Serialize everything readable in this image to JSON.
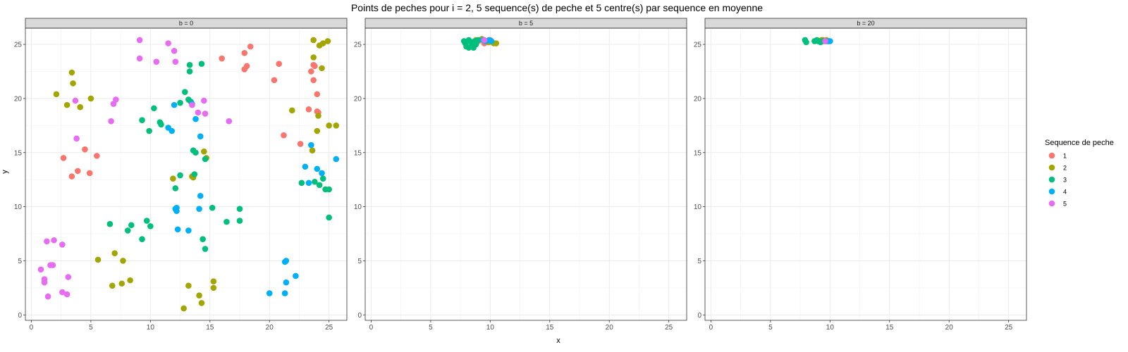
{
  "chart_data": {
    "type": "scatter",
    "title": "Points de peches pour i = 2, 5 sequence(s) de peche et 5 centre(s) par sequence en moyenne",
    "xlabel": "x",
    "ylabel": "y",
    "xlim": [
      -0.5,
      26.5
    ],
    "ylim": [
      -0.5,
      26.5
    ],
    "xticks": [
      0,
      5,
      10,
      15,
      20,
      25
    ],
    "yticks": [
      0,
      5,
      10,
      15,
      20,
      25
    ],
    "xtick_labels": [
      "0",
      "5",
      "10",
      "15",
      "20",
      "25"
    ],
    "ytick_labels": [
      "0",
      "5",
      "10",
      "15",
      "20",
      "25"
    ],
    "grid": true,
    "legend": {
      "title": "Sequence de peche",
      "position": "right",
      "entries": [
        {
          "label": "1",
          "color": "#F8766D"
        },
        {
          "label": "2",
          "color": "#A3A500"
        },
        {
          "label": "3",
          "color": "#00BF7D"
        },
        {
          "label": "4",
          "color": "#00B0F6"
        },
        {
          "label": "5",
          "color": "#E76BF3"
        }
      ]
    },
    "facets": [
      {
        "label": "b = 0",
        "series": [
          {
            "name": "1",
            "points": [
              [
                2.7,
                14.5
              ],
              [
                3.4,
                12.8
              ],
              [
                3.9,
                13.3
              ],
              [
                4.5,
                15.3
              ],
              [
                4.9,
                13.1
              ],
              [
                5.5,
                14.7
              ],
              [
                16.0,
                23.7
              ],
              [
                17.9,
                24.2
              ],
              [
                17.9,
                22.7
              ],
              [
                18.1,
                23.0
              ],
              [
                18.4,
                24.8
              ],
              [
                20.4,
                21.7
              ],
              [
                20.8,
                23.2
              ],
              [
                21.2,
                16.6
              ],
              [
                22.6,
                15.8
              ],
              [
                23.3,
                19.0
              ],
              [
                23.5,
                22.5
              ],
              [
                23.7,
                21.7
              ],
              [
                23.7,
                23.1
              ],
              [
                23.8,
                23.0
              ],
              [
                24.0,
                20.4
              ],
              [
                24.0,
                18.8
              ],
              [
                24.1,
                18.7
              ]
            ]
          },
          {
            "name": "2",
            "points": [
              [
                2.1,
                20.4
              ],
              [
                3.0,
                19.4
              ],
              [
                3.4,
                22.4
              ],
              [
                3.5,
                21.4
              ],
              [
                4.1,
                19.2
              ],
              [
                5.0,
                20.0
              ],
              [
                5.6,
                5.1
              ],
              [
                6.8,
                2.7
              ],
              [
                7.0,
                5.7
              ],
              [
                7.6,
                2.9
              ],
              [
                7.7,
                5.0
              ],
              [
                8.3,
                3.2
              ],
              [
                11.9,
                12.6
              ],
              [
                12.8,
                0.6
              ],
              [
                13.2,
                2.7
              ],
              [
                13.5,
                12.8
              ],
              [
                13.6,
                12.7
              ],
              [
                14.1,
                1.8
              ],
              [
                14.3,
                1.1
              ],
              [
                14.5,
                15.1
              ],
              [
                14.7,
                14.5
              ],
              [
                15.3,
                2.5
              ],
              [
                15.3,
                3.1
              ],
              [
                21.9,
                18.9
              ],
              [
                23.6,
                15.2
              ],
              [
                23.7,
                23.8
              ],
              [
                23.7,
                25.4
              ],
              [
                24.0,
                17.0
              ],
              [
                24.1,
                18.4
              ],
              [
                24.2,
                24.9
              ],
              [
                24.4,
                22.8
              ],
              [
                24.5,
                25.1
              ],
              [
                24.9,
                25.3
              ],
              [
                25.0,
                17.5
              ],
              [
                25.6,
                17.5
              ]
            ]
          },
          {
            "name": "3",
            "points": [
              [
                6.6,
                8.4
              ],
              [
                8.1,
                7.8
              ],
              [
                8.4,
                8.3
              ],
              [
                9.3,
                7.0
              ],
              [
                9.3,
                18.0
              ],
              [
                9.7,
                8.7
              ],
              [
                9.9,
                17.0
              ],
              [
                10.0,
                8.2
              ],
              [
                10.3,
                19.1
              ],
              [
                10.8,
                17.8
              ],
              [
                10.9,
                17.6
              ],
              [
                12.1,
                11.7
              ],
              [
                12.5,
                12.9
              ],
              [
                12.5,
                19.6
              ],
              [
                12.9,
                20.6
              ],
              [
                13.2,
                19.9
              ],
              [
                13.3,
                23.1
              ],
              [
                13.3,
                22.5
              ],
              [
                13.4,
                19.7
              ],
              [
                13.6,
                15.2
              ],
              [
                13.7,
                13.0
              ],
              [
                13.8,
                15.0
              ],
              [
                14.3,
                23.2
              ],
              [
                14.4,
                7.0
              ],
              [
                14.6,
                14.4
              ],
              [
                14.6,
                6.1
              ],
              [
                15.2,
                9.9
              ],
              [
                16.4,
                8.6
              ],
              [
                17.5,
                9.8
              ],
              [
                17.5,
                8.7
              ],
              [
                22.7,
                12.2
              ],
              [
                23.8,
                12.3
              ],
              [
                24.2,
                12.0
              ],
              [
                24.5,
                12.6
              ],
              [
                24.7,
                11.6
              ],
              [
                25.0,
                11.6
              ],
              [
                25.0,
                9.0
              ]
            ]
          },
          {
            "name": "4",
            "points": [
              [
                11.5,
                17.3
              ],
              [
                11.8,
                17.0
              ],
              [
                12.0,
                19.4
              ],
              [
                12.1,
                9.8
              ],
              [
                12.2,
                9.9
              ],
              [
                12.2,
                9.6
              ],
              [
                12.3,
                7.9
              ],
              [
                13.2,
                7.8
              ],
              [
                13.5,
                19.5
              ],
              [
                13.8,
                18.1
              ],
              [
                14.1,
                9.8
              ],
              [
                14.2,
                16.5
              ],
              [
                14.2,
                11.0
              ],
              [
                20.0,
                2.0
              ],
              [
                21.3,
                4.9
              ],
              [
                21.4,
                5.0
              ],
              [
                21.3,
                2.0
              ],
              [
                21.4,
                3.0
              ],
              [
                22.2,
                3.6
              ],
              [
                23.0,
                13.7
              ],
              [
                23.3,
                12.2
              ],
              [
                23.5,
                15.7
              ],
              [
                24.0,
                13.5
              ],
              [
                24.4,
                13.1
              ],
              [
                25.6,
                14.4
              ]
            ]
          },
          {
            "name": "5",
            "points": [
              [
                0.8,
                4.2
              ],
              [
                1.1,
                3.3
              ],
              [
                1.1,
                3.0
              ],
              [
                1.3,
                6.8
              ],
              [
                1.4,
                1.7
              ],
              [
                1.6,
                4.6
              ],
              [
                1.8,
                4.6
              ],
              [
                1.9,
                6.9
              ],
              [
                2.6,
                6.5
              ],
              [
                2.6,
                2.1
              ],
              [
                3.0,
                1.9
              ],
              [
                3.1,
                3.5
              ],
              [
                3.7,
                19.8
              ],
              [
                3.8,
                16.3
              ],
              [
                6.7,
                17.9
              ],
              [
                6.9,
                19.5
              ],
              [
                7.1,
                19.9
              ],
              [
                9.1,
                25.4
              ],
              [
                9.1,
                23.7
              ],
              [
                10.5,
                23.4
              ],
              [
                11.5,
                25.1
              ],
              [
                12.0,
                24.4
              ],
              [
                12.1,
                23.4
              ],
              [
                13.5,
                19.4
              ],
              [
                14.0,
                18.7
              ],
              [
                14.5,
                19.8
              ],
              [
                14.6,
                18.6
              ],
              [
                16.6,
                17.9
              ]
            ]
          }
        ]
      },
      {
        "label": "b = 5",
        "series": [
          {
            "name": "1",
            "points": [
              [
                9.0,
                25.3
              ],
              [
                9.5,
                25.1
              ],
              [
                10.0,
                25.4
              ],
              [
                9.8,
                25.2
              ]
            ]
          },
          {
            "name": "2",
            "points": [
              [
                8.8,
                25.4
              ],
              [
                9.3,
                25.5
              ],
              [
                9.9,
                25.2
              ],
              [
                10.3,
                25.1
              ],
              [
                10.5,
                25.1
              ],
              [
                9.6,
                25.3
              ]
            ]
          },
          {
            "name": "3",
            "points": [
              [
                7.8,
                25.3
              ],
              [
                7.9,
                25.1
              ],
              [
                8.0,
                24.8
              ],
              [
                8.1,
                25.3
              ],
              [
                8.2,
                24.7
              ],
              [
                8.2,
                25.4
              ],
              [
                8.4,
                25.2
              ],
              [
                8.5,
                24.9
              ],
              [
                8.6,
                24.7
              ],
              [
                8.7,
                25.3
              ],
              [
                8.8,
                25.0
              ],
              [
                9.0,
                25.4
              ]
            ]
          },
          {
            "name": "4",
            "points": [
              [
                9.4,
                25.4
              ],
              [
                9.6,
                25.3
              ],
              [
                9.9,
                25.4
              ],
              [
                10.1,
                25.3
              ]
            ]
          },
          {
            "name": "5",
            "points": [
              [
                9.5,
                25.4
              ]
            ]
          }
        ]
      },
      {
        "label": "b = 20",
        "series": [
          {
            "name": "1",
            "points": [
              [
                9.4,
                25.4
              ],
              [
                9.6,
                25.3
              ]
            ]
          },
          {
            "name": "2",
            "points": [
              [
                9.1,
                25.3
              ],
              [
                9.3,
                25.4
              ],
              [
                9.7,
                25.4
              ],
              [
                9.8,
                25.3
              ]
            ]
          },
          {
            "name": "3",
            "points": [
              [
                7.9,
                25.4
              ],
              [
                8.0,
                25.2
              ],
              [
                8.7,
                25.3
              ],
              [
                8.9,
                25.4
              ],
              [
                9.0,
                25.3
              ],
              [
                9.2,
                25.2
              ],
              [
                9.4,
                25.3
              ],
              [
                9.7,
                25.3
              ]
            ]
          },
          {
            "name": "4",
            "points": [
              [
                9.9,
                25.3
              ],
              [
                10.0,
                25.3
              ]
            ]
          },
          {
            "name": "5",
            "points": [
              [
                9.6,
                25.3
              ]
            ]
          }
        ]
      }
    ]
  }
}
